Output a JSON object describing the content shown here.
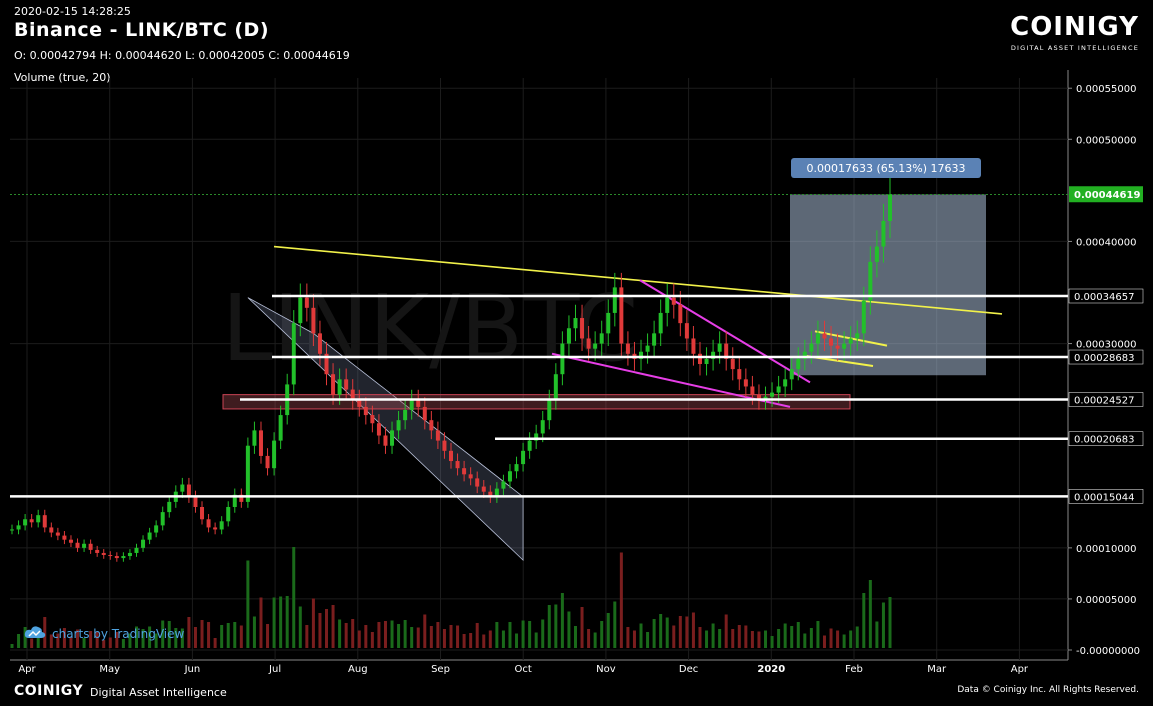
{
  "header": {
    "timestamp": "2020-02-15 14:28:25",
    "title": "Binance - LINK/BTC (D)",
    "ohlc": "O: 0.00042794 H: 0.00044620 L: 0.00042005 C: 0.00044619",
    "volume_label": "Volume (true, 20)"
  },
  "logo": {
    "word": "COINIGY",
    "tagline": "DIGITAL ASSET INTELLIGENCE"
  },
  "tv_credit": "charts by TradingView",
  "footer": {
    "logo_word": "COINIGY",
    "tagline": "Digital Asset Intelligence",
    "copyright": "Data © Coinigy Inc.  All Rights Reserved."
  },
  "watermark": "LINK/BTC",
  "colors": {
    "up": "#22c02a",
    "down": "#e03a3a",
    "trend": "#f2f24a",
    "wedge": "#e63ee6",
    "level": "#ffffff",
    "price_tag": "#22b022"
  },
  "chart_data": {
    "type": "candlestick",
    "y_axis": {
      "min": 0,
      "max": 0.00056,
      "ticks": [
        "0.00055000",
        "0.00050000",
        "0.00040000",
        "0.00030000",
        "0.00010000",
        "0.00005000",
        "-0.00000000"
      ]
    },
    "x_axis": {
      "labels": [
        "Apr",
        "May",
        "Jun",
        "Jul",
        "Aug",
        "Sep",
        "Oct",
        "Nov",
        "Dec",
        "2020",
        "Feb",
        "Mar",
        "Apr"
      ]
    },
    "price_levels": [
      {
        "value": 0.00034657,
        "label": "0.00034657"
      },
      {
        "value": 0.00028683,
        "label": "0.00028683"
      },
      {
        "value": 0.00024527,
        "label": "0.00024527"
      },
      {
        "value": 0.00020683,
        "label": "0.00020683"
      },
      {
        "value": 0.00015044,
        "label": "0.00015044"
      }
    ],
    "last_price": {
      "value": 0.00044619,
      "label": "0.00044619"
    },
    "measure_label": "0.00017633 (65.13%) 17633",
    "closes": [
      0.000118,
      0.000122,
      0.000128,
      0.000125,
      0.000132,
      0.00012,
      0.000115,
      0.000112,
      0.000108,
      0.000105,
      0.0001,
      0.000104,
      9.8e-05,
      9.5e-05,
      9.3e-05,
      9.2e-05,
      9e-05,
      9.2e-05,
      9.5e-05,
      0.0001,
      0.000108,
      0.000115,
      0.000122,
      0.000135,
      0.000145,
      0.000155,
      0.000162,
      0.00015,
      0.00014,
      0.000128,
      0.00012,
      0.000118,
      0.000126,
      0.00014,
      0.000152,
      0.000145,
      0.0002,
      0.000215,
      0.00019,
      0.000178,
      0.000205,
      0.00023,
      0.00026,
      0.00032,
      0.000345,
      0.000335,
      0.00031,
      0.00029,
      0.00027,
      0.00025,
      0.000265,
      0.000255,
      0.000245,
      0.000238,
      0.00023,
      0.000222,
      0.00021,
      0.0002,
      0.000215,
      0.000225,
      0.000235,
      0.000245,
      0.000238,
      0.000225,
      0.000215,
      0.000205,
      0.000195,
      0.000185,
      0.000178,
      0.000172,
      0.000168,
      0.00016,
      0.000155,
      0.00015,
      0.000158,
      0.000165,
      0.000175,
      0.000182,
      0.000195,
      0.000205,
      0.000212,
      0.000225,
      0.000245,
      0.00027,
      0.0003,
      0.000315,
      0.000325,
      0.000305,
      0.000295,
      0.0003,
      0.00031,
      0.00033,
      0.000355,
      0.0003,
      0.00029,
      0.000285,
      0.000292,
      0.000298,
      0.00031,
      0.00033,
      0.000345,
      0.000338,
      0.00032,
      0.000305,
      0.00029,
      0.00028,
      0.000285,
      0.000292,
      0.0003,
      0.000285,
      0.000275,
      0.000265,
      0.000258,
      0.00025,
      0.000245,
      0.000248,
      0.000252,
      0.000258,
      0.000265,
      0.000275,
      0.000285,
      0.000292,
      0.0003,
      0.00031,
      0.000305,
      0.000298,
      0.000295,
      0.0003,
      0.000305,
      0.00031,
      0.000342,
      0.00038,
      0.000395,
      0.00042,
      0.000446
    ]
  }
}
